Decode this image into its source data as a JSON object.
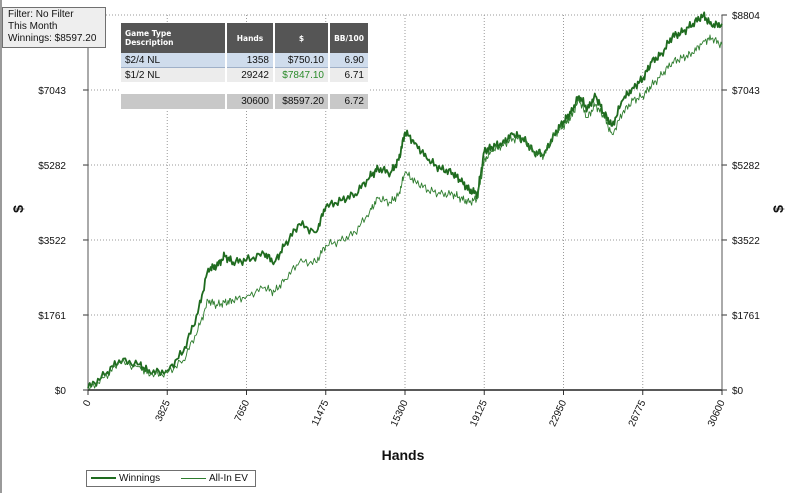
{
  "filter_box": {
    "line1": "Filter: No Filter",
    "line2": "This Month",
    "line3": "Winnings: $8597.20"
  },
  "stats_table": {
    "headers": [
      "Game Type Description",
      "Hands",
      "$",
      "BB/100"
    ],
    "rows": [
      {
        "game": "$2/4 NL",
        "hands": "1358",
        "dollars": "$750.10",
        "bb100": "6.90"
      },
      {
        "game": "$1/2 NL",
        "hands": "29242",
        "dollars": "$7847.10",
        "bb100": "6.71"
      }
    ],
    "total": {
      "game": "",
      "hands": "30600",
      "dollars": "$8597.20",
      "bb100": "6.72"
    }
  },
  "legend": {
    "winnings": "Winnings",
    "allin_ev": "All-In EV"
  },
  "colors": {
    "winnings_line": "#1f6b1f",
    "allin_line": "#2e7d2e",
    "positive_dollar": "#2a8a2a",
    "header_bg": "#555555"
  },
  "chart_data": {
    "type": "line",
    "xlabel": "Hands",
    "ylabel": "$",
    "xlim": [
      0,
      30600
    ],
    "ylim": [
      0,
      8804
    ],
    "x_ticks": [
      "0",
      "3825",
      "7650",
      "11475",
      "15300",
      "19125",
      "22950",
      "26775",
      "30600"
    ],
    "y_ticks": [
      "$0",
      "$1761",
      "$3522",
      "$5282",
      "$7043",
      "$8804"
    ],
    "grid": true,
    "legend_position": "bottom-left",
    "x": [
      0,
      800,
      1500,
      2500,
      3000,
      3825,
      4600,
      5300,
      5800,
      6200,
      6600,
      7000,
      7650,
      8500,
      9000,
      9500,
      10200,
      11000,
      11475,
      12200,
      12900,
      13600,
      14000,
      14600,
      15000,
      15300,
      15800,
      16400,
      17000,
      17600,
      18000,
      18400,
      18800,
      19125,
      19500,
      20000,
      20500,
      21000,
      21500,
      22000,
      22500,
      22950,
      23300,
      23700,
      24100,
      24500,
      24900,
      25300,
      25800,
      26300,
      26775,
      27200,
      27700,
      28200,
      28700,
      29200,
      29700,
      30100,
      30600
    ],
    "series": [
      {
        "name": "Winnings",
        "values": [
          50,
          350,
          700,
          600,
          400,
          450,
          900,
          1800,
          2850,
          2900,
          3150,
          3000,
          3050,
          3200,
          3000,
          3400,
          3900,
          3700,
          4300,
          4450,
          4600,
          5000,
          5200,
          5100,
          5400,
          6050,
          5800,
          5400,
          5200,
          5100,
          4900,
          4700,
          4600,
          5600,
          5700,
          5800,
          6000,
          5900,
          5600,
          5500,
          6000,
          6300,
          6500,
          6900,
          6600,
          6900,
          6500,
          6200,
          6800,
          7100,
          7300,
          7700,
          7900,
          8300,
          8400,
          8600,
          8804,
          8550,
          8597
        ]
      },
      {
        "name": "All-In EV",
        "values": [
          20,
          300,
          650,
          550,
          350,
          400,
          700,
          1400,
          2100,
          2000,
          2050,
          2100,
          2200,
          2400,
          2300,
          2600,
          3000,
          3000,
          3400,
          3500,
          3700,
          4200,
          4500,
          4400,
          4600,
          5100,
          4900,
          4700,
          4600,
          4600,
          4500,
          4400,
          4500,
          5400,
          5600,
          5750,
          5900,
          5900,
          5600,
          5500,
          6000,
          6200,
          6400,
          6800,
          6400,
          6700,
          6400,
          6000,
          6500,
          6800,
          6900,
          7150,
          7400,
          7700,
          7800,
          7900,
          8200,
          8250,
          8100
        ]
      }
    ]
  }
}
